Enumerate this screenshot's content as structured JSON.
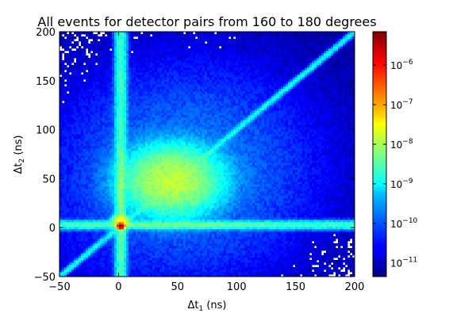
{
  "chart_data": {
    "type": "heatmap",
    "title": "All events for detector pairs from 160 to 180 degrees",
    "xlabel": {
      "prefix": "Δt",
      "sub": "1",
      "suffix": " (ns)"
    },
    "ylabel": {
      "prefix": "Δt",
      "sub": "2",
      "suffix": " (ns)"
    },
    "xlim": [
      -50,
      200
    ],
    "ylim": [
      -50,
      200
    ],
    "xticks": [
      -50,
      0,
      50,
      100,
      150,
      200
    ],
    "yticks": [
      -50,
      0,
      50,
      100,
      150,
      200
    ],
    "colorbar": {
      "scale": "log",
      "range": [
        4.5e-12,
        7e-06
      ],
      "colormap": "jet",
      "ticks": [
        {
          "value": 1e-06,
          "base": "10",
          "exp": "-6"
        },
        {
          "value": 1e-07,
          "base": "10",
          "exp": "-7"
        },
        {
          "value": 1e-08,
          "base": "10",
          "exp": "-8"
        },
        {
          "value": 1e-09,
          "base": "10",
          "exp": "-9"
        },
        {
          "value": 1e-10,
          "base": "10",
          "exp": "-10"
        },
        {
          "value": 1e-11,
          "base": "10",
          "exp": "-11"
        }
      ]
    },
    "features": [
      {
        "name": "vertical band",
        "x_center": 2,
        "width_ns": 6,
        "level": 2e-09
      },
      {
        "name": "horizontal band",
        "y_center": 2,
        "width_ns": 6,
        "level": 2e-09
      },
      {
        "name": "diagonal",
        "relation": "dt2 = dt1",
        "level": 1e-09
      },
      {
        "name": "central blob",
        "x_center": 45,
        "y_center": 50,
        "level": 1.5e-08
      },
      {
        "name": "peak",
        "x": 2,
        "y": 2,
        "level": 7e-06
      }
    ],
    "grid": false
  },
  "colors": {
    "jet_low": "#00007f",
    "jet_mid": "#7fff7f",
    "jet_high": "#7f0000",
    "background": "#ffffff"
  }
}
